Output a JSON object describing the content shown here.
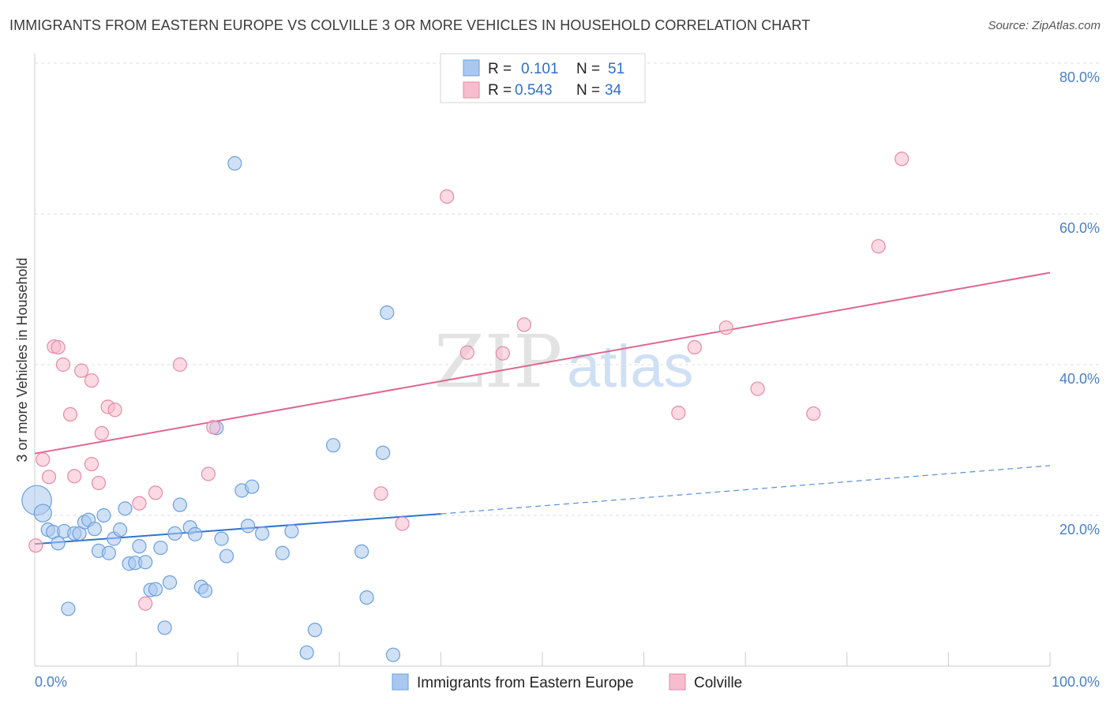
{
  "title": "IMMIGRANTS FROM EASTERN EUROPE VS COLVILLE 3 OR MORE VEHICLES IN HOUSEHOLD CORRELATION CHART",
  "source": "Source: ZipAtlas.com",
  "watermark": {
    "zip": "ZIP",
    "atlas": "atlas"
  },
  "colors": {
    "blue_fill": "#a9c8ef",
    "blue_stroke": "#6b9fdc",
    "blue_line": "#2f73d0",
    "pink_fill": "#f7bccd",
    "pink_stroke": "#e58aa6",
    "pink_line": "#e0668f",
    "grid": "#dddddd",
    "tick_text": "#4a7fc9"
  },
  "legend": {
    "rows": [
      {
        "r_label": "R =",
        "r_value": "0.101",
        "n_label": "N =",
        "n_value": "51",
        "series": "blue"
      },
      {
        "r_label": "R =",
        "r_value": "0.543",
        "n_label": "N =",
        "n_value": "34",
        "series": "pink"
      }
    ]
  },
  "chart_data": {
    "type": "scatter",
    "ylabel": "3 or more Vehicles in Household",
    "xlim": [
      0,
      100
    ],
    "ylim": [
      0,
      80
    ],
    "x_tick_labels": [
      "0.0%",
      "100.0%"
    ],
    "y_ticks": [
      20,
      40,
      60,
      80
    ],
    "y_tick_labels": [
      "20.0%",
      "40.0%",
      "60.0%",
      "80.0%"
    ],
    "grid": "horizontal dashed",
    "legend_position": "top-center",
    "series": [
      {
        "name": "Immigrants from Eastern Europe",
        "color": "blue",
        "points": [
          {
            "x": 0.2,
            "y": 22.0,
            "s": 2.2
          },
          {
            "x": 0.8,
            "y": 20.3,
            "s": 1.3
          },
          {
            "x": 1.3,
            "y": 18.1
          },
          {
            "x": 1.8,
            "y": 17.8
          },
          {
            "x": 2.3,
            "y": 16.3
          },
          {
            "x": 2.9,
            "y": 17.9
          },
          {
            "x": 3.3,
            "y": 7.6
          },
          {
            "x": 3.9,
            "y": 17.6
          },
          {
            "x": 4.4,
            "y": 17.6
          },
          {
            "x": 4.9,
            "y": 19.1
          },
          {
            "x": 5.3,
            "y": 19.4
          },
          {
            "x": 5.9,
            "y": 18.2
          },
          {
            "x": 6.3,
            "y": 15.3
          },
          {
            "x": 6.8,
            "y": 20.0
          },
          {
            "x": 7.3,
            "y": 15.0
          },
          {
            "x": 7.8,
            "y": 16.9
          },
          {
            "x": 8.4,
            "y": 18.1
          },
          {
            "x": 8.9,
            "y": 20.9
          },
          {
            "x": 9.3,
            "y": 13.6
          },
          {
            "x": 9.9,
            "y": 13.7
          },
          {
            "x": 10.3,
            "y": 15.9
          },
          {
            "x": 10.9,
            "y": 13.8
          },
          {
            "x": 11.4,
            "y": 10.1
          },
          {
            "x": 11.9,
            "y": 10.2
          },
          {
            "x": 12.4,
            "y": 15.7
          },
          {
            "x": 12.8,
            "y": 5.1
          },
          {
            "x": 13.3,
            "y": 11.1
          },
          {
            "x": 13.8,
            "y": 17.6
          },
          {
            "x": 14.3,
            "y": 21.4
          },
          {
            "x": 15.3,
            "y": 18.4
          },
          {
            "x": 15.8,
            "y": 17.5
          },
          {
            "x": 16.4,
            "y": 10.5
          },
          {
            "x": 16.8,
            "y": 10.0
          },
          {
            "x": 17.9,
            "y": 31.6
          },
          {
            "x": 18.4,
            "y": 16.9
          },
          {
            "x": 18.9,
            "y": 14.6
          },
          {
            "x": 19.7,
            "y": 66.7
          },
          {
            "x": 20.4,
            "y": 23.3
          },
          {
            "x": 21.0,
            "y": 18.6
          },
          {
            "x": 21.4,
            "y": 23.8
          },
          {
            "x": 22.4,
            "y": 17.6
          },
          {
            "x": 24.4,
            "y": 15.0
          },
          {
            "x": 25.3,
            "y": 17.9
          },
          {
            "x": 26.8,
            "y": 1.8
          },
          {
            "x": 27.6,
            "y": 4.8
          },
          {
            "x": 29.4,
            "y": 29.3
          },
          {
            "x": 32.2,
            "y": 15.2
          },
          {
            "x": 32.7,
            "y": 9.1
          },
          {
            "x": 34.3,
            "y": 28.3
          },
          {
            "x": 34.7,
            "y": 46.9
          },
          {
            "x": 35.3,
            "y": 1.5
          }
        ],
        "trend": {
          "x0": 0,
          "y0": 16.2,
          "x1": 40,
          "y1": 20.2,
          "dashed_to_x": 100,
          "dashed_to_y": 26.6
        }
      },
      {
        "name": "Colville",
        "color": "pink",
        "points": [
          {
            "x": 0.1,
            "y": 16.0
          },
          {
            "x": 0.8,
            "y": 27.4
          },
          {
            "x": 1.4,
            "y": 25.1
          },
          {
            "x": 1.9,
            "y": 42.4
          },
          {
            "x": 2.3,
            "y": 42.3
          },
          {
            "x": 2.8,
            "y": 40.0
          },
          {
            "x": 3.5,
            "y": 33.4
          },
          {
            "x": 3.9,
            "y": 25.2
          },
          {
            "x": 4.6,
            "y": 39.2
          },
          {
            "x": 5.6,
            "y": 37.9
          },
          {
            "x": 5.6,
            "y": 26.8
          },
          {
            "x": 6.3,
            "y": 24.3
          },
          {
            "x": 6.6,
            "y": 30.9
          },
          {
            "x": 7.2,
            "y": 34.4
          },
          {
            "x": 7.9,
            "y": 34.0
          },
          {
            "x": 10.3,
            "y": 21.6
          },
          {
            "x": 10.9,
            "y": 8.3
          },
          {
            "x": 11.9,
            "y": 23.0
          },
          {
            "x": 14.3,
            "y": 40.0
          },
          {
            "x": 17.1,
            "y": 25.5
          },
          {
            "x": 17.6,
            "y": 31.7
          },
          {
            "x": 34.1,
            "y": 22.9
          },
          {
            "x": 36.2,
            "y": 18.9
          },
          {
            "x": 40.6,
            "y": 62.3
          },
          {
            "x": 42.6,
            "y": 41.6
          },
          {
            "x": 46.1,
            "y": 41.5
          },
          {
            "x": 48.2,
            "y": 45.3
          },
          {
            "x": 63.4,
            "y": 33.6
          },
          {
            "x": 65.0,
            "y": 42.3
          },
          {
            "x": 68.1,
            "y": 44.9
          },
          {
            "x": 71.2,
            "y": 36.8
          },
          {
            "x": 76.7,
            "y": 33.5
          },
          {
            "x": 83.1,
            "y": 55.7
          },
          {
            "x": 85.4,
            "y": 67.3
          }
        ],
        "trend": {
          "x0": 0,
          "y0": 28.2,
          "x1": 100,
          "y1": 52.2
        }
      }
    ]
  }
}
